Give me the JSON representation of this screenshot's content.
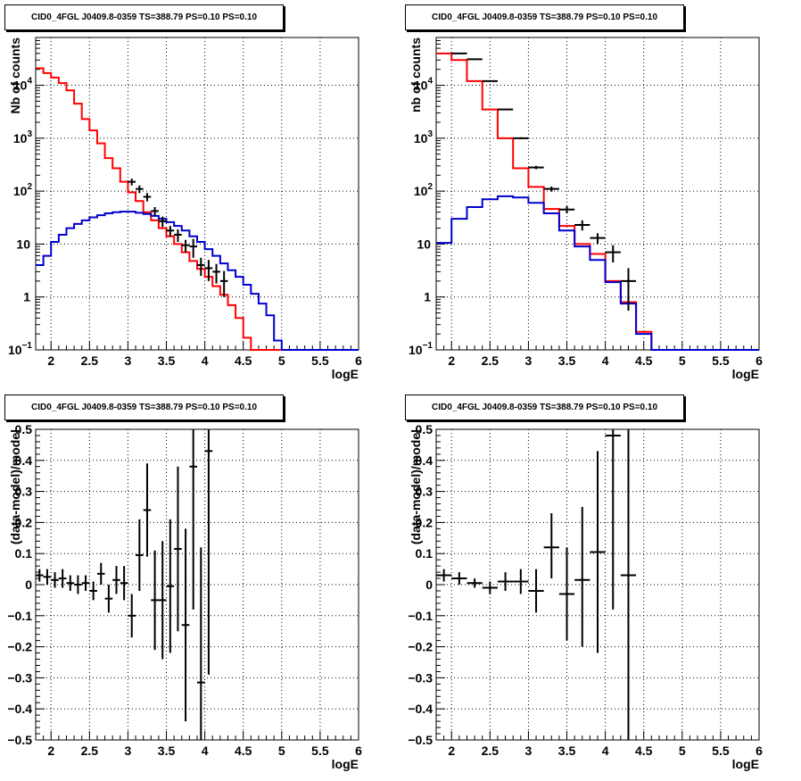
{
  "chart_data": [
    {
      "type": "line",
      "title": "CID0_4FGL J0409.8-0359 TS=388.79 PS=0.10 PS=0.10",
      "xlabel": "logE",
      "ylabel": "Nb of counts",
      "xlim": [
        1.8,
        6.0
      ],
      "ylim": [
        0.1,
        80000
      ],
      "yscale": "log",
      "grid": true,
      "xticks": [
        "2",
        "2.5",
        "3",
        "3.5",
        "4",
        "4.5",
        "5",
        "5.5",
        "6"
      ],
      "yticks": [
        {
          "v": 0.1,
          "m": "10",
          "e": "−1"
        },
        {
          "v": 1,
          "m": "1",
          "e": ""
        },
        {
          "v": 10,
          "m": "10",
          "e": ""
        },
        {
          "v": 100,
          "m": "10",
          "e": "2"
        },
        {
          "v": 1000,
          "m": "10",
          "e": "3"
        },
        {
          "v": 10000,
          "m": "10",
          "e": "4"
        }
      ],
      "bin_edges": [
        1.8,
        1.9,
        2.0,
        2.1,
        2.2,
        2.3,
        2.4,
        2.5,
        2.6,
        2.7,
        2.8,
        2.9,
        3.0,
        3.1,
        3.2,
        3.3,
        3.4,
        3.5,
        3.6,
        3.7,
        3.8,
        3.9,
        4.0,
        4.1,
        4.2,
        4.3,
        4.4,
        4.5,
        4.6,
        4.7,
        4.8,
        4.9,
        5.0,
        5.1,
        5.2,
        5.3,
        5.4,
        5.5,
        5.6,
        5.7,
        5.8,
        5.9,
        6.0
      ],
      "series": [
        {
          "name": "total model",
          "color": "#ff0000",
          "values": [
            21000,
            17000,
            14000,
            11000,
            8000,
            4500,
            2300,
            1400,
            800,
            420,
            270,
            150,
            95,
            65,
            40,
            28,
            20,
            14,
            10,
            7,
            4.8,
            3.4,
            2.4,
            1.6,
            1.1,
            0.7,
            0.4,
            0.17,
            0.1,
            0.1,
            0.1,
            0.1,
            0.1,
            0.1,
            0.1,
            0.1,
            0.1,
            0.1,
            0.1,
            0.1,
            0.1,
            0.1
          ]
        },
        {
          "name": "source model",
          "color": "#0000cc",
          "values": [
            4,
            6,
            11,
            15,
            20,
            24,
            28,
            32,
            35,
            38,
            40,
            41,
            41,
            39,
            37,
            34,
            30,
            26,
            22,
            18,
            14,
            11,
            8,
            6,
            4.3,
            3.2,
            2.4,
            1.7,
            1.15,
            0.75,
            0.45,
            0.15,
            0.1,
            0.1,
            0.1,
            0.1,
            0.1,
            0.1,
            0.1,
            0.1,
            0.1,
            0.1
          ]
        }
      ],
      "points": {
        "name": "data",
        "color": "#000000",
        "x_half": 0.05,
        "x": [
          3.05,
          3.15,
          3.25,
          3.35,
          3.45,
          3.55,
          3.65,
          3.75,
          3.85,
          3.95,
          4.05,
          4.15,
          4.25
        ],
        "y": [
          150,
          110,
          78,
          42,
          27,
          18,
          15,
          9.5,
          9,
          4,
          3.5,
          3,
          2
        ],
        "ylo": [
          128,
          92,
          64,
          34,
          21,
          14,
          11,
          7,
          5.5,
          2.5,
          2.0,
          1.8,
          1.0
        ],
        "yhi": [
          172,
          128,
          92,
          50,
          33,
          22,
          19,
          12,
          12.5,
          5.5,
          5.0,
          4.2,
          3.1
        ]
      }
    },
    {
      "type": "line",
      "title": "CID0_4FGL J0409.8-0359 TS=388.79 PS=0.10 PS=0.10",
      "xlabel": "logE",
      "ylabel": "nb of counts",
      "xlim": [
        1.8,
        6.0
      ],
      "ylim": [
        0.1,
        80000
      ],
      "yscale": "log",
      "grid": true,
      "xticks": [
        "2",
        "2.5",
        "3",
        "3.5",
        "4",
        "4.5",
        "5",
        "5.5",
        "6"
      ],
      "yticks": [
        {
          "v": 0.1,
          "m": "10",
          "e": "−1"
        },
        {
          "v": 1,
          "m": "1",
          "e": ""
        },
        {
          "v": 10,
          "m": "10",
          "e": ""
        },
        {
          "v": 100,
          "m": "10",
          "e": "2"
        },
        {
          "v": 1000,
          "m": "10",
          "e": "3"
        },
        {
          "v": 10000,
          "m": "10",
          "e": "4"
        }
      ],
      "bin_edges": [
        1.8,
        2.0,
        2.2,
        2.4,
        2.6,
        2.8,
        3.0,
        3.2,
        3.4,
        3.6,
        3.8,
        4.0,
        4.2,
        4.4,
        4.6,
        4.8,
        5.0,
        5.2,
        5.4,
        5.6,
        5.8,
        6.0
      ],
      "series": [
        {
          "name": "total model",
          "color": "#ff0000",
          "values": [
            40000,
            30000,
            12000,
            3500,
            1000,
            270,
            120,
            46,
            22,
            10,
            6.5,
            2,
            0.8,
            0.22,
            0.1,
            0.1,
            0.1,
            0.1,
            0.1,
            0.1,
            0.1
          ]
        },
        {
          "name": "source model",
          "color": "#0000cc",
          "values": [
            10.5,
            30,
            50,
            70,
            80,
            76,
            60,
            38,
            18,
            9,
            5,
            1.9,
            0.75,
            0.2,
            0.1,
            0.1,
            0.1,
            0.1,
            0.1,
            0.1,
            0.1
          ]
        }
      ],
      "points": {
        "name": "data",
        "color": "#000000",
        "x_half": 0.1,
        "x": [
          2.1,
          2.3,
          2.5,
          2.7,
          2.9,
          3.1,
          3.3,
          3.5,
          3.7,
          3.9,
          4.1,
          4.3
        ],
        "y": [
          40000,
          31000,
          12000,
          3500,
          1000,
          280,
          110,
          45,
          23,
          13,
          7,
          2
        ],
        "ylo": [
          39500,
          30500,
          11800,
          3400,
          960,
          260,
          98,
          38,
          18,
          10,
          4.5,
          0.55
        ],
        "yhi": [
          40500,
          31500,
          12200,
          3600,
          1040,
          300,
          122,
          52,
          28,
          16,
          9.5,
          3.5
        ]
      }
    },
    {
      "type": "scatter",
      "title": "CID0_4FGL J0409.8-0359 TS=388.79 PS=0.10 PS=0.10",
      "xlabel": "logE",
      "ylabel": "(data-model)/model",
      "xlim": [
        1.8,
        6.0
      ],
      "ylim": [
        -0.5,
        0.5
      ],
      "grid": true,
      "xticks": [
        "2",
        "2.5",
        "3",
        "3.5",
        "4",
        "4.5",
        "5",
        "5.5",
        "6"
      ],
      "yticks": [
        "−0.5",
        "−0.4",
        "−0.3",
        "−0.2",
        "−0.1",
        "0",
        "0.1",
        "0.2",
        "0.3",
        "0.4",
        "0.5"
      ],
      "points": {
        "name": "residuals",
        "color": "#000000",
        "x_half": 0.05,
        "x": [
          1.85,
          1.95,
          2.05,
          2.15,
          2.25,
          2.35,
          2.45,
          2.55,
          2.65,
          2.75,
          2.85,
          2.95,
          3.05,
          3.15,
          3.25,
          3.35,
          3.45,
          3.55,
          3.65,
          3.75,
          3.85,
          3.95,
          4.05
        ],
        "y": [
          0.03,
          0.025,
          0.015,
          0.02,
          0.005,
          0.0,
          0.005,
          -0.02,
          0.035,
          -0.045,
          0.015,
          0.005,
          -0.1,
          0.095,
          0.24,
          -0.05,
          -0.05,
          -0.005,
          0.115,
          -0.13,
          0.38,
          -0.315,
          0.43
        ],
        "ylo": [
          0.01,
          0.0,
          -0.01,
          -0.01,
          -0.02,
          -0.03,
          -0.02,
          -0.05,
          0.0,
          -0.09,
          -0.03,
          -0.05,
          -0.17,
          -0.02,
          0.09,
          -0.21,
          -0.24,
          -0.22,
          -0.15,
          -0.44,
          -0.08,
          -0.75,
          -0.29
        ],
        "yhi": [
          0.05,
          0.05,
          0.04,
          0.05,
          0.03,
          0.03,
          0.03,
          0.01,
          0.07,
          0.0,
          0.06,
          0.06,
          -0.03,
          0.21,
          0.39,
          0.11,
          0.14,
          0.21,
          0.38,
          0.18,
          0.84,
          0.12,
          1.15
        ]
      }
    },
    {
      "type": "scatter",
      "title": "CID0_4FGL J0409.8-0359 TS=388.79 PS=0.10 PS=0.10",
      "xlabel": "logE",
      "ylabel": "(data-model)/model",
      "xlim": [
        1.8,
        6.0
      ],
      "ylim": [
        -0.5,
        0.5
      ],
      "grid": true,
      "xticks": [
        "2",
        "2.5",
        "3",
        "3.5",
        "4",
        "4.5",
        "5",
        "5.5",
        "6"
      ],
      "yticks": [
        "−0.5",
        "−0.4",
        "−0.3",
        "−0.2",
        "−0.1",
        "0",
        "0.1",
        "0.2",
        "0.3",
        "0.4",
        "0.5"
      ],
      "points": {
        "name": "residuals",
        "color": "#000000",
        "x_half": 0.1,
        "x": [
          1.9,
          2.1,
          2.3,
          2.5,
          2.7,
          2.9,
          3.1,
          3.3,
          3.5,
          3.7,
          3.9,
          4.1,
          4.3
        ],
        "y": [
          0.03,
          0.02,
          0.005,
          -0.01,
          0.01,
          0.01,
          -0.02,
          0.12,
          -0.03,
          0.015,
          0.105,
          0.48,
          0.03
        ],
        "ylo": [
          0.01,
          0.0,
          -0.01,
          -0.03,
          -0.02,
          -0.03,
          -0.09,
          0.02,
          -0.18,
          -0.2,
          -0.22,
          -0.08,
          -0.6
        ],
        "yhi": [
          0.05,
          0.04,
          0.02,
          0.01,
          0.04,
          0.05,
          0.05,
          0.23,
          0.12,
          0.25,
          0.43,
          1.0,
          0.7
        ]
      }
    }
  ]
}
